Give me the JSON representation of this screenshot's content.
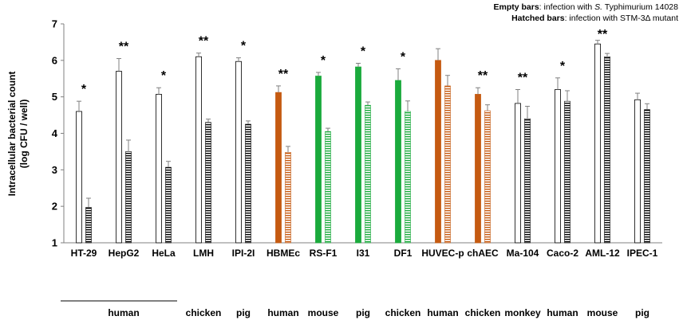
{
  "chart_data": {
    "type": "bar",
    "title": "",
    "ylabel": "Intracellular bacterial count (log CFU / well)",
    "ylabel_lines": [
      "Intracellular bacterial count",
      "(log CFU / well)"
    ],
    "ylim": [
      1,
      7
    ],
    "yticks": [
      1,
      2,
      3,
      4,
      5,
      6,
      7
    ],
    "legend": {
      "position": "top-right",
      "line1": {
        "bold": "Empty bars",
        "text": ": infection with ",
        "italic": "S.",
        "tail": " Typhimurium  14028"
      },
      "line2": {
        "bold": "Hatched bars",
        "text": ": infection with STM-3Δ mutant"
      }
    },
    "categories": [
      "HT-29",
      "HepG2",
      "HeLa",
      "LMH",
      "IPI-2I",
      "HBMEc",
      "RS-F1",
      "I31",
      "DF1",
      "HUVEC-p",
      "chAEC",
      "Ma-104",
      "Caco-2",
      "AML-12",
      "IPEC-1"
    ],
    "species": [
      {
        "label": "human",
        "span": [
          0,
          2
        ],
        "underline": true
      },
      {
        "label": "chicken",
        "span": [
          3,
          3
        ]
      },
      {
        "label": "pig",
        "span": [
          4,
          4
        ]
      },
      {
        "label": "human",
        "span": [
          5,
          5
        ]
      },
      {
        "label": "mouse",
        "span": [
          6,
          6
        ]
      },
      {
        "label": "pig",
        "span": [
          7,
          7
        ]
      },
      {
        "label": "chicken",
        "span": [
          8,
          8
        ]
      },
      {
        "label": "human",
        "span": [
          9,
          9
        ]
      },
      {
        "label": "chicken",
        "span": [
          10,
          10
        ]
      },
      {
        "label": "monkey",
        "span": [
          11,
          11
        ]
      },
      {
        "label": "human",
        "span": [
          12,
          12
        ]
      },
      {
        "label": "mouse",
        "span": [
          13,
          13
        ]
      },
      {
        "label": "pig",
        "span": [
          14,
          14
        ]
      }
    ],
    "colors": [
      "white",
      "white",
      "white",
      "white",
      "white",
      "orange",
      "green",
      "green",
      "green",
      "orange",
      "orange",
      "white",
      "white",
      "white",
      "white"
    ],
    "palette": {
      "white": "#ffffff",
      "orange": "#c55a11",
      "green": "#1aaa3c",
      "outline": "#000000",
      "axis": "#808080"
    },
    "significance": [
      "*",
      "**",
      "*",
      "**",
      "*",
      "**",
      "*",
      "*",
      "*",
      "",
      "**",
      "**",
      "*",
      "**",
      ""
    ],
    "series": [
      {
        "name": "Empty bars: infection with S. Typhimurium 14028",
        "values": [
          4.6,
          5.7,
          5.07,
          6.1,
          5.97,
          5.12,
          5.57,
          5.82,
          5.45,
          6.0,
          5.07,
          4.82,
          5.2,
          6.45,
          4.92
        ],
        "errors": [
          0.28,
          0.35,
          0.18,
          0.1,
          0.1,
          0.18,
          0.1,
          0.1,
          0.32,
          0.32,
          0.18,
          0.38,
          0.32,
          0.1,
          0.18
        ]
      },
      {
        "name": "Hatched bars: infection with STM-3Δ mutant",
        "values": [
          1.97,
          3.5,
          3.07,
          4.3,
          4.25,
          3.48,
          4.05,
          4.77,
          4.6,
          5.3,
          4.62,
          4.4,
          4.88,
          6.1,
          4.65
        ]
      }
    ]
  }
}
